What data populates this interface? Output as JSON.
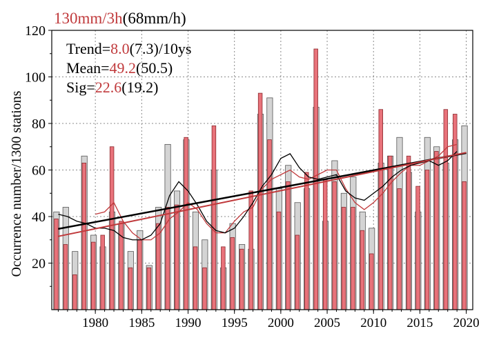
{
  "colors": {
    "bar_red": "#e8727a",
    "bar_gray": "#d4d4d4",
    "red_line": "#c0393b",
    "black_line": "#000000",
    "grid": "#888888"
  },
  "title": {
    "red_part": "130mm/3h",
    "black_part": "(68mm/h)"
  },
  "stats": [
    {
      "label": "Trend=",
      "red": "8.0",
      "rest": "(7.3)/10ys"
    },
    {
      "label": "Mean=",
      "red": "49.2",
      "rest": "(50.5)"
    },
    {
      "label": "Sig=",
      "red": "22.6",
      "rest": "(19.2)"
    }
  ],
  "chart_data": {
    "type": "bar",
    "ylabel": "Occurrence number/1300 stations",
    "xlabel": "",
    "xlim": [
      1975.3,
      2020.7
    ],
    "ylim": [
      0,
      120
    ],
    "yticks": [
      20,
      40,
      60,
      80,
      100,
      120
    ],
    "xticks": [
      1980,
      1985,
      1990,
      1995,
      2000,
      2005,
      2010,
      2015,
      2020
    ],
    "grid": true,
    "years": [
      1976,
      1977,
      1978,
      1979,
      1980,
      1981,
      1982,
      1983,
      1984,
      1985,
      1986,
      1987,
      1988,
      1989,
      1990,
      1991,
      1992,
      1993,
      1994,
      1995,
      1996,
      1997,
      1998,
      1999,
      2000,
      2001,
      2002,
      2003,
      2004,
      2005,
      2006,
      2007,
      2008,
      2009,
      2010,
      2011,
      2012,
      2013,
      2014,
      2015,
      2016,
      2017,
      2018,
      2019,
      2020
    ],
    "series": [
      {
        "name": "",
        "color": "gray",
        "values": [
          42,
          44,
          25,
          66,
          32,
          27,
          42,
          37,
          25,
          34,
          19,
          44,
          71,
          51,
          73,
          42,
          30,
          60,
          18,
          37,
          28,
          26,
          84,
          91,
          52,
          62,
          46,
          52,
          87,
          38,
          64,
          50,
          57,
          42,
          35,
          63,
          66,
          74,
          59,
          42,
          74,
          70,
          63,
          73,
          79
        ]
      },
      {
        "name": "",
        "color": "red",
        "values": [
          39,
          28,
          15,
          63,
          29,
          32,
          70,
          38,
          18,
          30,
          18,
          37,
          44,
          45,
          74,
          27,
          18,
          79,
          27,
          31,
          26,
          51,
          93,
          73,
          42,
          55,
          32,
          59,
          112,
          56,
          55,
          44,
          44,
          34,
          24,
          86,
          66,
          52,
          66,
          53,
          60,
          68,
          86,
          84,
          55
        ]
      }
    ],
    "smoothed_black": [
      41,
      40,
      38,
      37,
      35,
      35,
      34,
      31,
      30,
      30,
      32,
      37,
      49,
      55,
      51,
      45,
      38,
      34,
      33,
      35,
      40,
      46,
      53,
      58,
      65,
      67,
      61,
      57,
      56,
      57,
      58,
      51,
      48,
      47,
      50,
      53,
      57,
      60,
      62,
      63,
      64,
      62,
      64,
      68,
      null
    ],
    "smoothed_red": [
      null,
      null,
      null,
      null,
      41,
      42,
      46,
      38,
      33,
      30,
      30,
      33,
      39,
      42,
      46,
      43,
      37,
      33,
      33,
      38,
      42,
      44,
      52,
      56,
      58,
      60,
      57,
      56,
      58,
      60,
      60,
      52,
      46,
      43,
      46,
      50,
      55,
      59,
      62,
      62,
      64,
      66,
      70,
      71,
      null
    ],
    "trend_black": {
      "x": [
        1976,
        2020
      ],
      "y": [
        34.7,
        67.3
      ]
    },
    "trend_red": {
      "x": [
        1976,
        2020
      ],
      "y": [
        31.5,
        67.5
      ]
    }
  }
}
